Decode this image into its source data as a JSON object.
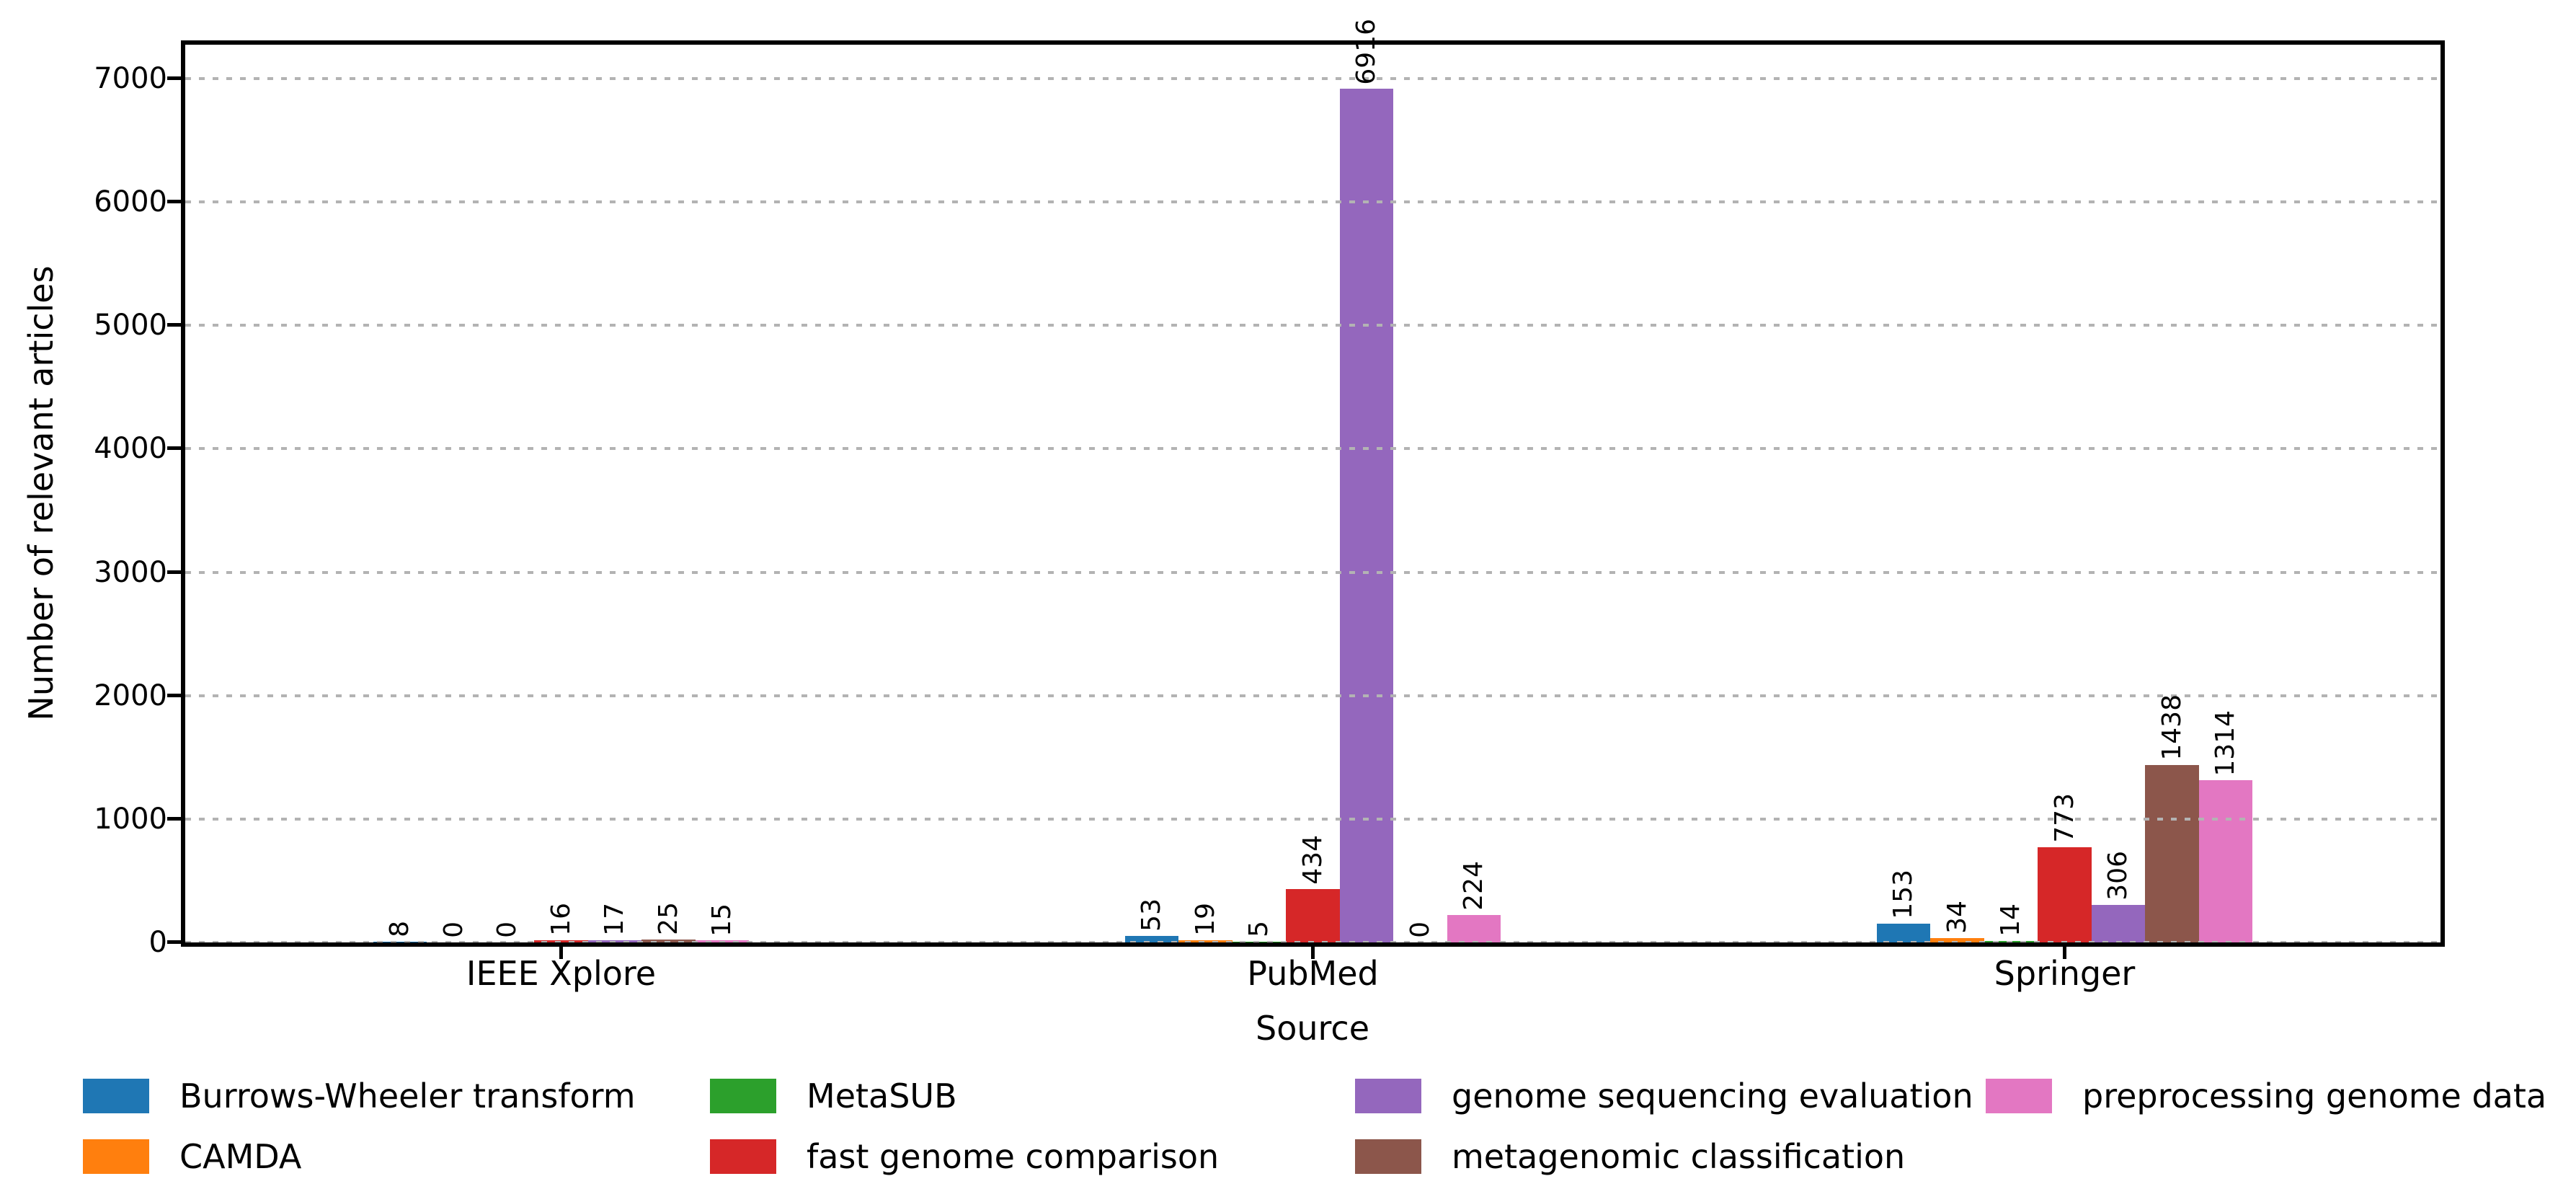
{
  "chart_data": {
    "type": "bar",
    "title": "",
    "xlabel": "Source",
    "ylabel": "Number of relevant articles",
    "categories": [
      "IEEE Xplore",
      "PubMed",
      "Springer"
    ],
    "series": [
      {
        "name": "Burrows-Wheeler transform",
        "color": "#1f77b4",
        "values": [
          8,
          53,
          153
        ]
      },
      {
        "name": "CAMDA",
        "color": "#ff7f0e",
        "values": [
          0,
          19,
          34
        ]
      },
      {
        "name": "MetaSUB",
        "color": "#2ca02c",
        "values": [
          0,
          5,
          14
        ]
      },
      {
        "name": "fast genome comparison",
        "color": "#d62728",
        "values": [
          16,
          434,
          773
        ]
      },
      {
        "name": "genome sequencing evaluation",
        "color": "#9467bd",
        "values": [
          17,
          6916,
          306
        ]
      },
      {
        "name": "metagenomic classification",
        "color": "#8c564b",
        "values": [
          25,
          0,
          1438
        ]
      },
      {
        "name": "preprocessing genome data",
        "color": "#e377c2",
        "values": [
          15,
          224,
          1314
        ]
      }
    ],
    "y_ticks": [
      0,
      1000,
      2000,
      3000,
      4000,
      5000,
      6000,
      7000
    ],
    "ylim": [
      0,
      7275
    ],
    "bar_value_labels": true,
    "bar_label_rotation_degrees": 90,
    "grid": "horizontal dotted, drawn above bars",
    "grid_color": "#b3b3b3",
    "axis_color": "#000000",
    "background_color": "#ffffff",
    "legend_position": "below chart, 4 columns, no frame",
    "legend_column_fill_order": "column-major"
  }
}
